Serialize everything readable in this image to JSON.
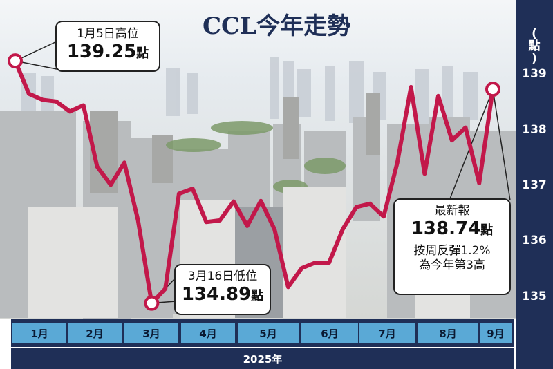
{
  "chart_data": {
    "type": "line",
    "title": "CCL今年走勢",
    "ylabel": "點",
    "xlabel": "2025年",
    "ylim": [
      134.6,
      139.6
    ],
    "yticks": [
      135,
      136,
      137,
      138,
      139
    ],
    "month_labels": [
      "1月",
      "2月",
      "3月",
      "4月",
      "5月",
      "6月",
      "7月",
      "8月",
      "9月"
    ],
    "line_color": "#c2184a",
    "series": [
      {
        "values": [
          139.25,
          138.66,
          138.55,
          138.52,
          138.34,
          138.45,
          137.35,
          137.02,
          137.42,
          136.38,
          134.89,
          135.15,
          136.86,
          136.95,
          136.35,
          136.38,
          136.72,
          136.28,
          136.73,
          136.22,
          135.18,
          135.52,
          135.62,
          135.62,
          136.22,
          136.62,
          136.68,
          136.45,
          137.42,
          138.78,
          137.22,
          138.62,
          137.82,
          138.05,
          137.05,
          138.74
        ]
      }
    ]
  },
  "callouts": {
    "high": {
      "label": "1月5日高位",
      "value": "139.25",
      "unit": "點"
    },
    "low": {
      "label": "3月16日低位",
      "value": "134.89",
      "unit": "點"
    },
    "latest": {
      "label": "最新報",
      "value": "138.74",
      "unit": "點",
      "note1": "按周反彈1.2%",
      "note2": "為今年第3高"
    }
  },
  "colors": {
    "navy": "#1f2f57",
    "month_blue": "#5aa9d6"
  }
}
